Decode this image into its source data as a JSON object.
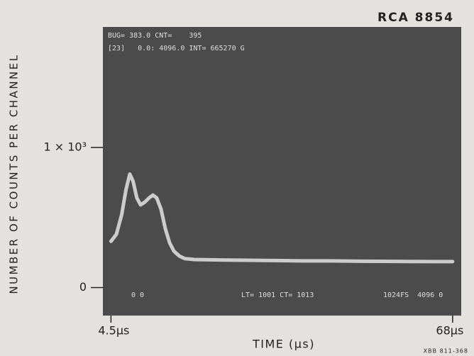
{
  "chart_data": {
    "type": "line",
    "title": "RCA 8854",
    "x_label": "TIME (µs)",
    "y_label": "NUMBER OF COUNTS PER CHANNEL",
    "x": [
      4.5,
      5.5,
      6.5,
      7.3,
      8.0,
      8.6,
      9.3,
      10.0,
      10.8,
      11.6,
      12.3,
      13.0,
      13.8,
      14.6,
      15.4,
      16.2,
      17.2,
      18.2,
      20,
      25,
      30,
      35,
      40,
      45,
      50,
      55,
      60,
      65,
      68
    ],
    "values": [
      330,
      380,
      520,
      700,
      810,
      760,
      640,
      590,
      610,
      640,
      660,
      640,
      560,
      420,
      320,
      260,
      225,
      207,
      200,
      197,
      195,
      193,
      190,
      190,
      188,
      187,
      186,
      185,
      185
    ],
    "color": "#dadada",
    "xlim": [
      3,
      69.6
    ],
    "xticks": [
      {
        "value": 4.5,
        "label": "4.5µs"
      },
      {
        "value": 68,
        "label": "68µs"
      }
    ],
    "ylim": [
      -200,
      1860
    ],
    "yticks": [
      {
        "value": 0,
        "label": "0"
      },
      {
        "value": 1000,
        "label": "1 × 10³"
      }
    ],
    "annotations": [
      "BUG= 383.0 CNT=    395",
      "[23]   0.0: 4096.0 INT= 665270 G",
      "0 0",
      "LT= 1001 CT= 1013",
      "1024FS  4096 0"
    ],
    "footer": "XBB 811-368"
  }
}
